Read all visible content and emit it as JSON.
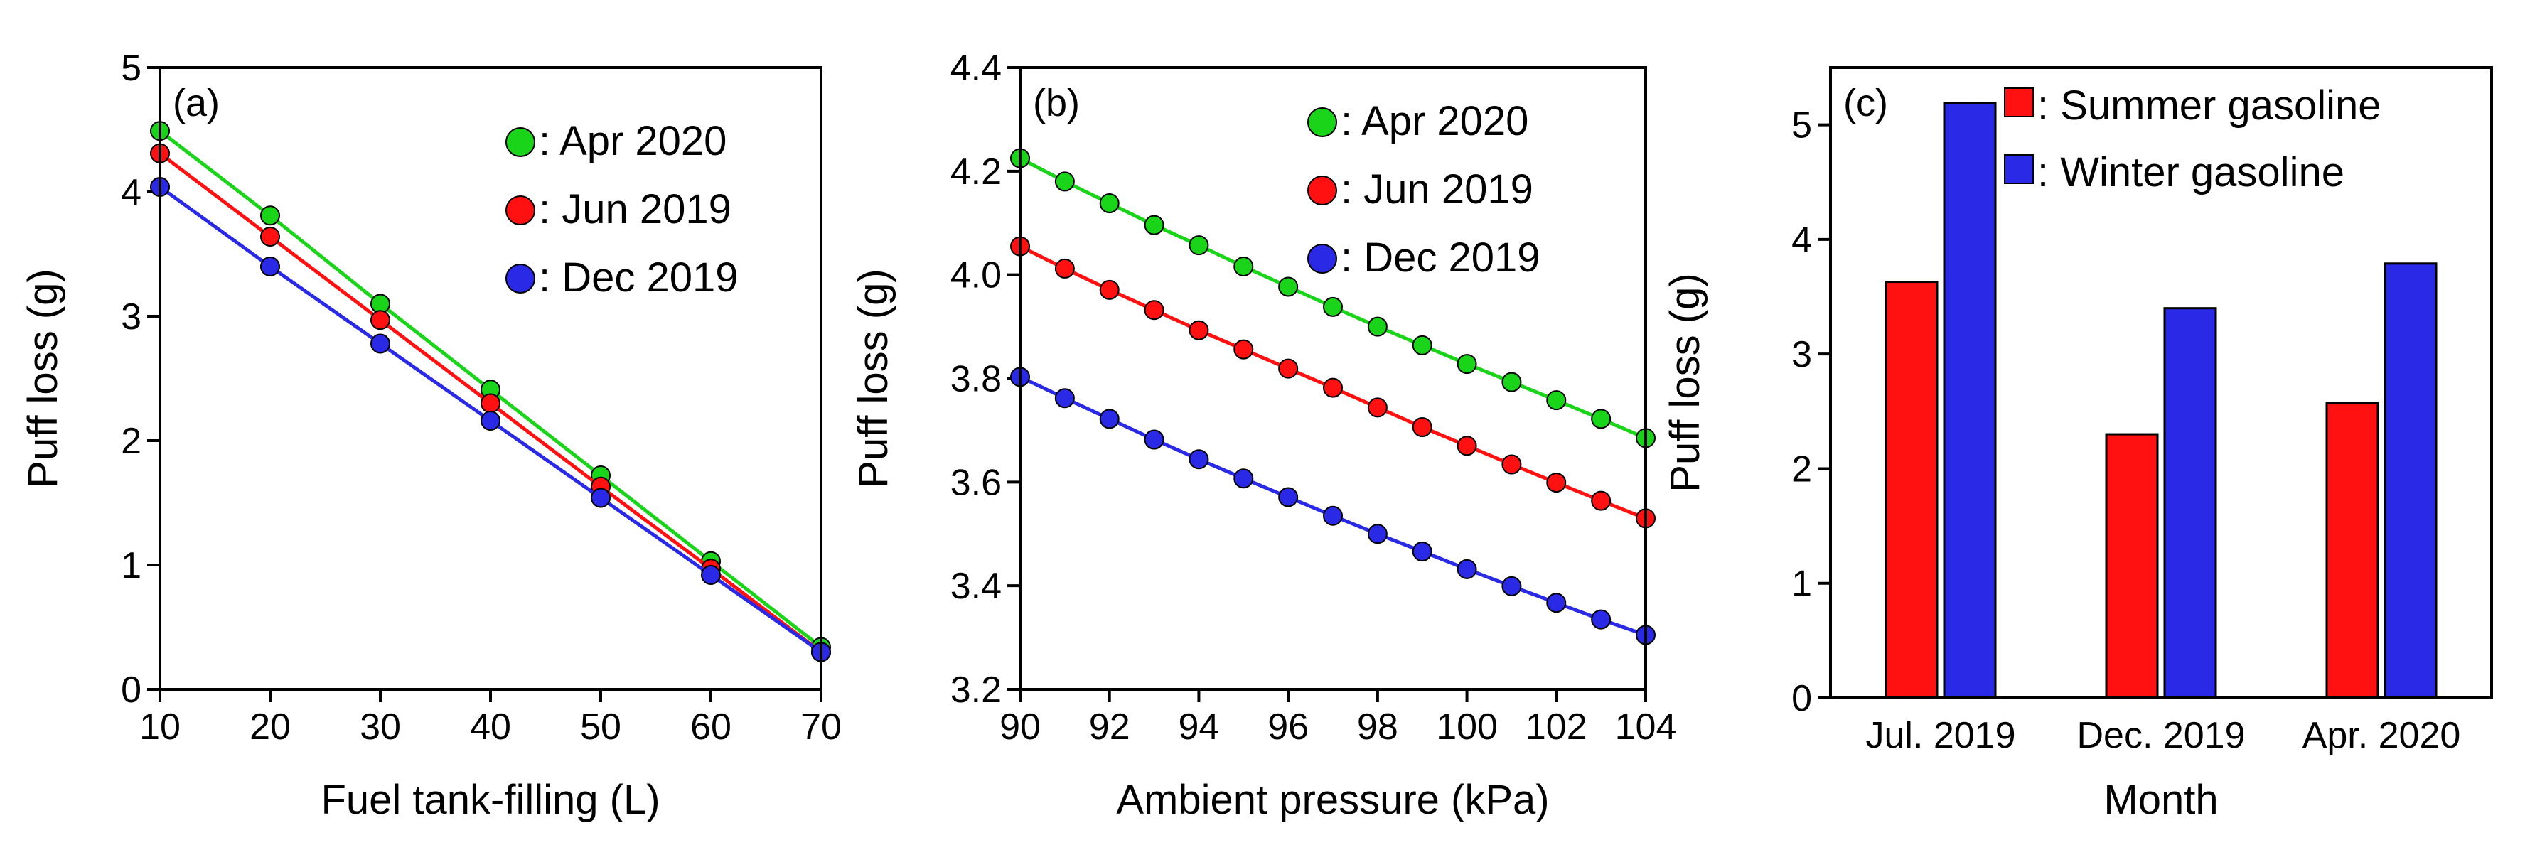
{
  "colors": {
    "green": "#19d419",
    "red": "#ff1111",
    "blue": "#2a2ae6"
  },
  "chart_data": [
    {
      "type": "line",
      "panel_label": "(a)",
      "xlabel": "Fuel tank-filling (L)",
      "ylabel": "Puff loss (g)",
      "xlim": [
        10,
        70
      ],
      "ylim": [
        0,
        5
      ],
      "x_ticks": [
        "10",
        "20",
        "30",
        "40",
        "50",
        "60",
        "70"
      ],
      "y_ticks": [
        "0",
        "1",
        "2",
        "3",
        "4",
        "5"
      ],
      "x": [
        10,
        20,
        30,
        40,
        50,
        60,
        70
      ],
      "legend_position": "top-right",
      "series": [
        {
          "name": ": Apr 2020",
          "color": "green",
          "values": [
            4.49,
            3.81,
            3.1,
            2.41,
            1.72,
            1.03,
            0.34
          ]
        },
        {
          "name": ": Jun 2019",
          "color": "red",
          "values": [
            4.31,
            3.64,
            2.97,
            2.3,
            1.63,
            0.97,
            0.3
          ]
        },
        {
          "name": ": Dec 2019",
          "color": "blue",
          "values": [
            4.04,
            3.4,
            2.78,
            2.16,
            1.54,
            0.92,
            0.3
          ]
        }
      ]
    },
    {
      "type": "line",
      "panel_label": "(b)",
      "xlabel": "Ambient pressure (kPa)",
      "ylabel": "Puff loss (g)",
      "xlim": [
        90,
        104
      ],
      "ylim": [
        3.2,
        4.4
      ],
      "x_ticks": [
        "90",
        "92",
        "94",
        "96",
        "98",
        "100",
        "102",
        "104"
      ],
      "y_ticks": [
        "3.2",
        "3.4",
        "3.6",
        "3.8",
        "4.0",
        "4.2",
        "4.4"
      ],
      "x": [
        90,
        91,
        92,
        93,
        94,
        95,
        96,
        97,
        98,
        99,
        100,
        101,
        102,
        103,
        104
      ],
      "legend_position": "top-right",
      "series": [
        {
          "name": ": Apr 2020",
          "color": "green",
          "values": [
            4.225,
            4.18,
            4.138,
            4.096,
            4.057,
            4.016,
            3.977,
            3.938,
            3.9,
            3.864,
            3.828,
            3.793,
            3.758,
            3.722,
            3.685
          ]
        },
        {
          "name": ": Jun 2019",
          "color": "red",
          "values": [
            4.055,
            4.012,
            3.971,
            3.932,
            3.893,
            3.856,
            3.819,
            3.782,
            3.744,
            3.706,
            3.67,
            3.634,
            3.599,
            3.564,
            3.53
          ]
        },
        {
          "name": ": Dec 2019",
          "color": "blue",
          "values": [
            3.803,
            3.762,
            3.722,
            3.682,
            3.644,
            3.607,
            3.571,
            3.535,
            3.5,
            3.466,
            3.432,
            3.399,
            3.367,
            3.335,
            3.305
          ]
        }
      ]
    },
    {
      "type": "bar",
      "panel_label": "(c)",
      "xlabel": "Month",
      "ylabel": "Puff loss (g)",
      "ylim": [
        0,
        5.5
      ],
      "y_ticks": [
        "0",
        "1",
        "2",
        "3",
        "4",
        "5"
      ],
      "categories": [
        "Jul. 2019",
        "Dec. 2019",
        "Apr. 2020"
      ],
      "legend_position": "top-left",
      "series": [
        {
          "name": ": Summer gasoline",
          "color": "red",
          "values": [
            3.63,
            2.3,
            2.57
          ]
        },
        {
          "name": ": Winter gasoline",
          "color": "blue",
          "values": [
            5.19,
            3.4,
            3.79
          ]
        }
      ]
    }
  ]
}
